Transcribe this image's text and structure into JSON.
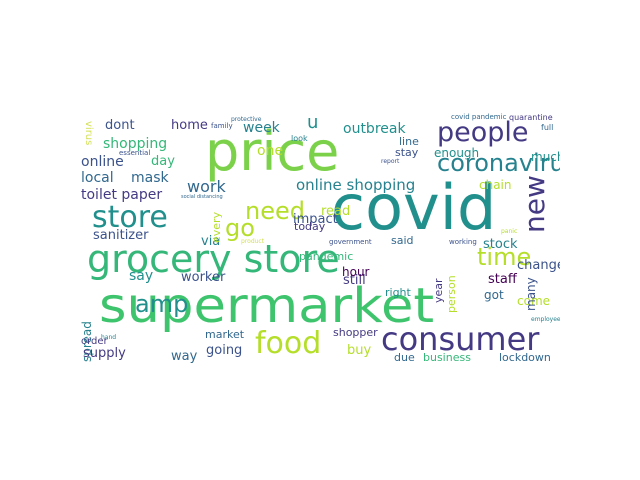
{
  "palette": {
    "green": "#3ec46d",
    "bright_green": "#7bd14a",
    "lime": "#b5de2b",
    "teal": "#21908d",
    "blue": "#31688e",
    "navy": "#443a83",
    "purple": "#440154",
    "dark_teal": "#26828e",
    "sea": "#35b779",
    "indigo": "#3b528b",
    "light": "#d4e157"
  },
  "words": [
    {
      "text": "supermarket",
      "color": "green"
    },
    {
      "text": "covid",
      "color": "teal"
    },
    {
      "text": "price",
      "color": "bright_green"
    },
    {
      "text": "grocery store",
      "color": "sea"
    },
    {
      "text": "consumer",
      "color": "navy"
    },
    {
      "text": "store",
      "color": "teal"
    },
    {
      "text": "people",
      "color": "navy"
    },
    {
      "text": "food",
      "color": "lime"
    },
    {
      "text": "coronavirus",
      "color": "dark_teal"
    },
    {
      "text": "new",
      "color": "navy"
    },
    {
      "text": "need",
      "color": "lime"
    },
    {
      "text": "time",
      "color": "lime"
    },
    {
      "text": "amp",
      "color": "teal"
    },
    {
      "text": "go",
      "color": "lime"
    },
    {
      "text": "online shopping",
      "color": "dark_teal"
    },
    {
      "text": "work",
      "color": "blue"
    },
    {
      "text": "toilet paper",
      "color": "navy"
    },
    {
      "text": "shopping",
      "color": "sea"
    },
    {
      "text": "outbreak",
      "color": "teal"
    },
    {
      "text": "mask",
      "color": "blue"
    },
    {
      "text": "local",
      "color": "blue"
    },
    {
      "text": "online",
      "color": "indigo"
    },
    {
      "text": "day",
      "color": "sea"
    },
    {
      "text": "home",
      "color": "navy"
    },
    {
      "text": "dont",
      "color": "indigo"
    },
    {
      "text": "u",
      "color": "teal"
    },
    {
      "text": "week",
      "color": "dark_teal"
    },
    {
      "text": "one",
      "color": "lime"
    },
    {
      "text": "sanitizer",
      "color": "indigo"
    },
    {
      "text": "impact",
      "color": "indigo"
    },
    {
      "text": "read",
      "color": "lime"
    },
    {
      "text": "via",
      "color": "dark_teal"
    },
    {
      "text": "say",
      "color": "teal"
    },
    {
      "text": "worker",
      "color": "indigo"
    },
    {
      "text": "still",
      "color": "navy"
    },
    {
      "text": "stock",
      "color": "dark_teal"
    },
    {
      "text": "change",
      "color": "indigo"
    },
    {
      "text": "staff",
      "color": "purple"
    },
    {
      "text": "spread",
      "color": "dark_teal"
    },
    {
      "text": "supply",
      "color": "navy"
    },
    {
      "text": "going",
      "color": "indigo"
    },
    {
      "text": "way",
      "color": "blue"
    },
    {
      "text": "buy",
      "color": "lime"
    },
    {
      "text": "hour",
      "color": "purple"
    },
    {
      "text": "chain",
      "color": "lime"
    },
    {
      "text": "enough",
      "color": "teal"
    },
    {
      "text": "much",
      "color": "teal"
    },
    {
      "text": "come",
      "color": "lime"
    },
    {
      "text": "many",
      "color": "indigo"
    },
    {
      "text": "got",
      "color": "blue"
    },
    {
      "text": "right",
      "color": "teal"
    },
    {
      "text": "person",
      "color": "lime"
    },
    {
      "text": "year",
      "color": "navy"
    },
    {
      "text": "due",
      "color": "blue"
    },
    {
      "text": "business",
      "color": "sea"
    },
    {
      "text": "lockdown",
      "color": "blue"
    },
    {
      "text": "shopper",
      "color": "navy"
    },
    {
      "text": "market",
      "color": "blue"
    },
    {
      "text": "pandemic",
      "color": "sea"
    },
    {
      "text": "today",
      "color": "navy"
    },
    {
      "text": "every",
      "color": "lime"
    },
    {
      "text": "line",
      "color": "blue"
    },
    {
      "text": "stay",
      "color": "indigo"
    },
    {
      "text": "said",
      "color": "blue"
    },
    {
      "text": "order",
      "color": "navy"
    },
    {
      "text": "virus",
      "color": "light"
    },
    {
      "text": "quarantine",
      "color": "navy"
    },
    {
      "text": "full",
      "color": "blue"
    },
    {
      "text": "covid pandemic",
      "color": "blue"
    },
    {
      "text": "essential",
      "color": "indigo"
    },
    {
      "text": "government",
      "color": "indigo"
    },
    {
      "text": "family",
      "color": "indigo"
    },
    {
      "text": "look",
      "color": "dark_teal"
    },
    {
      "text": "working",
      "color": "indigo"
    },
    {
      "text": "product",
      "color": "light"
    },
    {
      "text": "panic",
      "color": "lime"
    },
    {
      "text": "report",
      "color": "indigo"
    },
    {
      "text": "protective",
      "color": "blue"
    },
    {
      "text": "social distancing",
      "color": "blue"
    },
    {
      "text": "hand",
      "color": "dark_teal"
    },
    {
      "text": "employee",
      "color": "dark_teal"
    }
  ]
}
